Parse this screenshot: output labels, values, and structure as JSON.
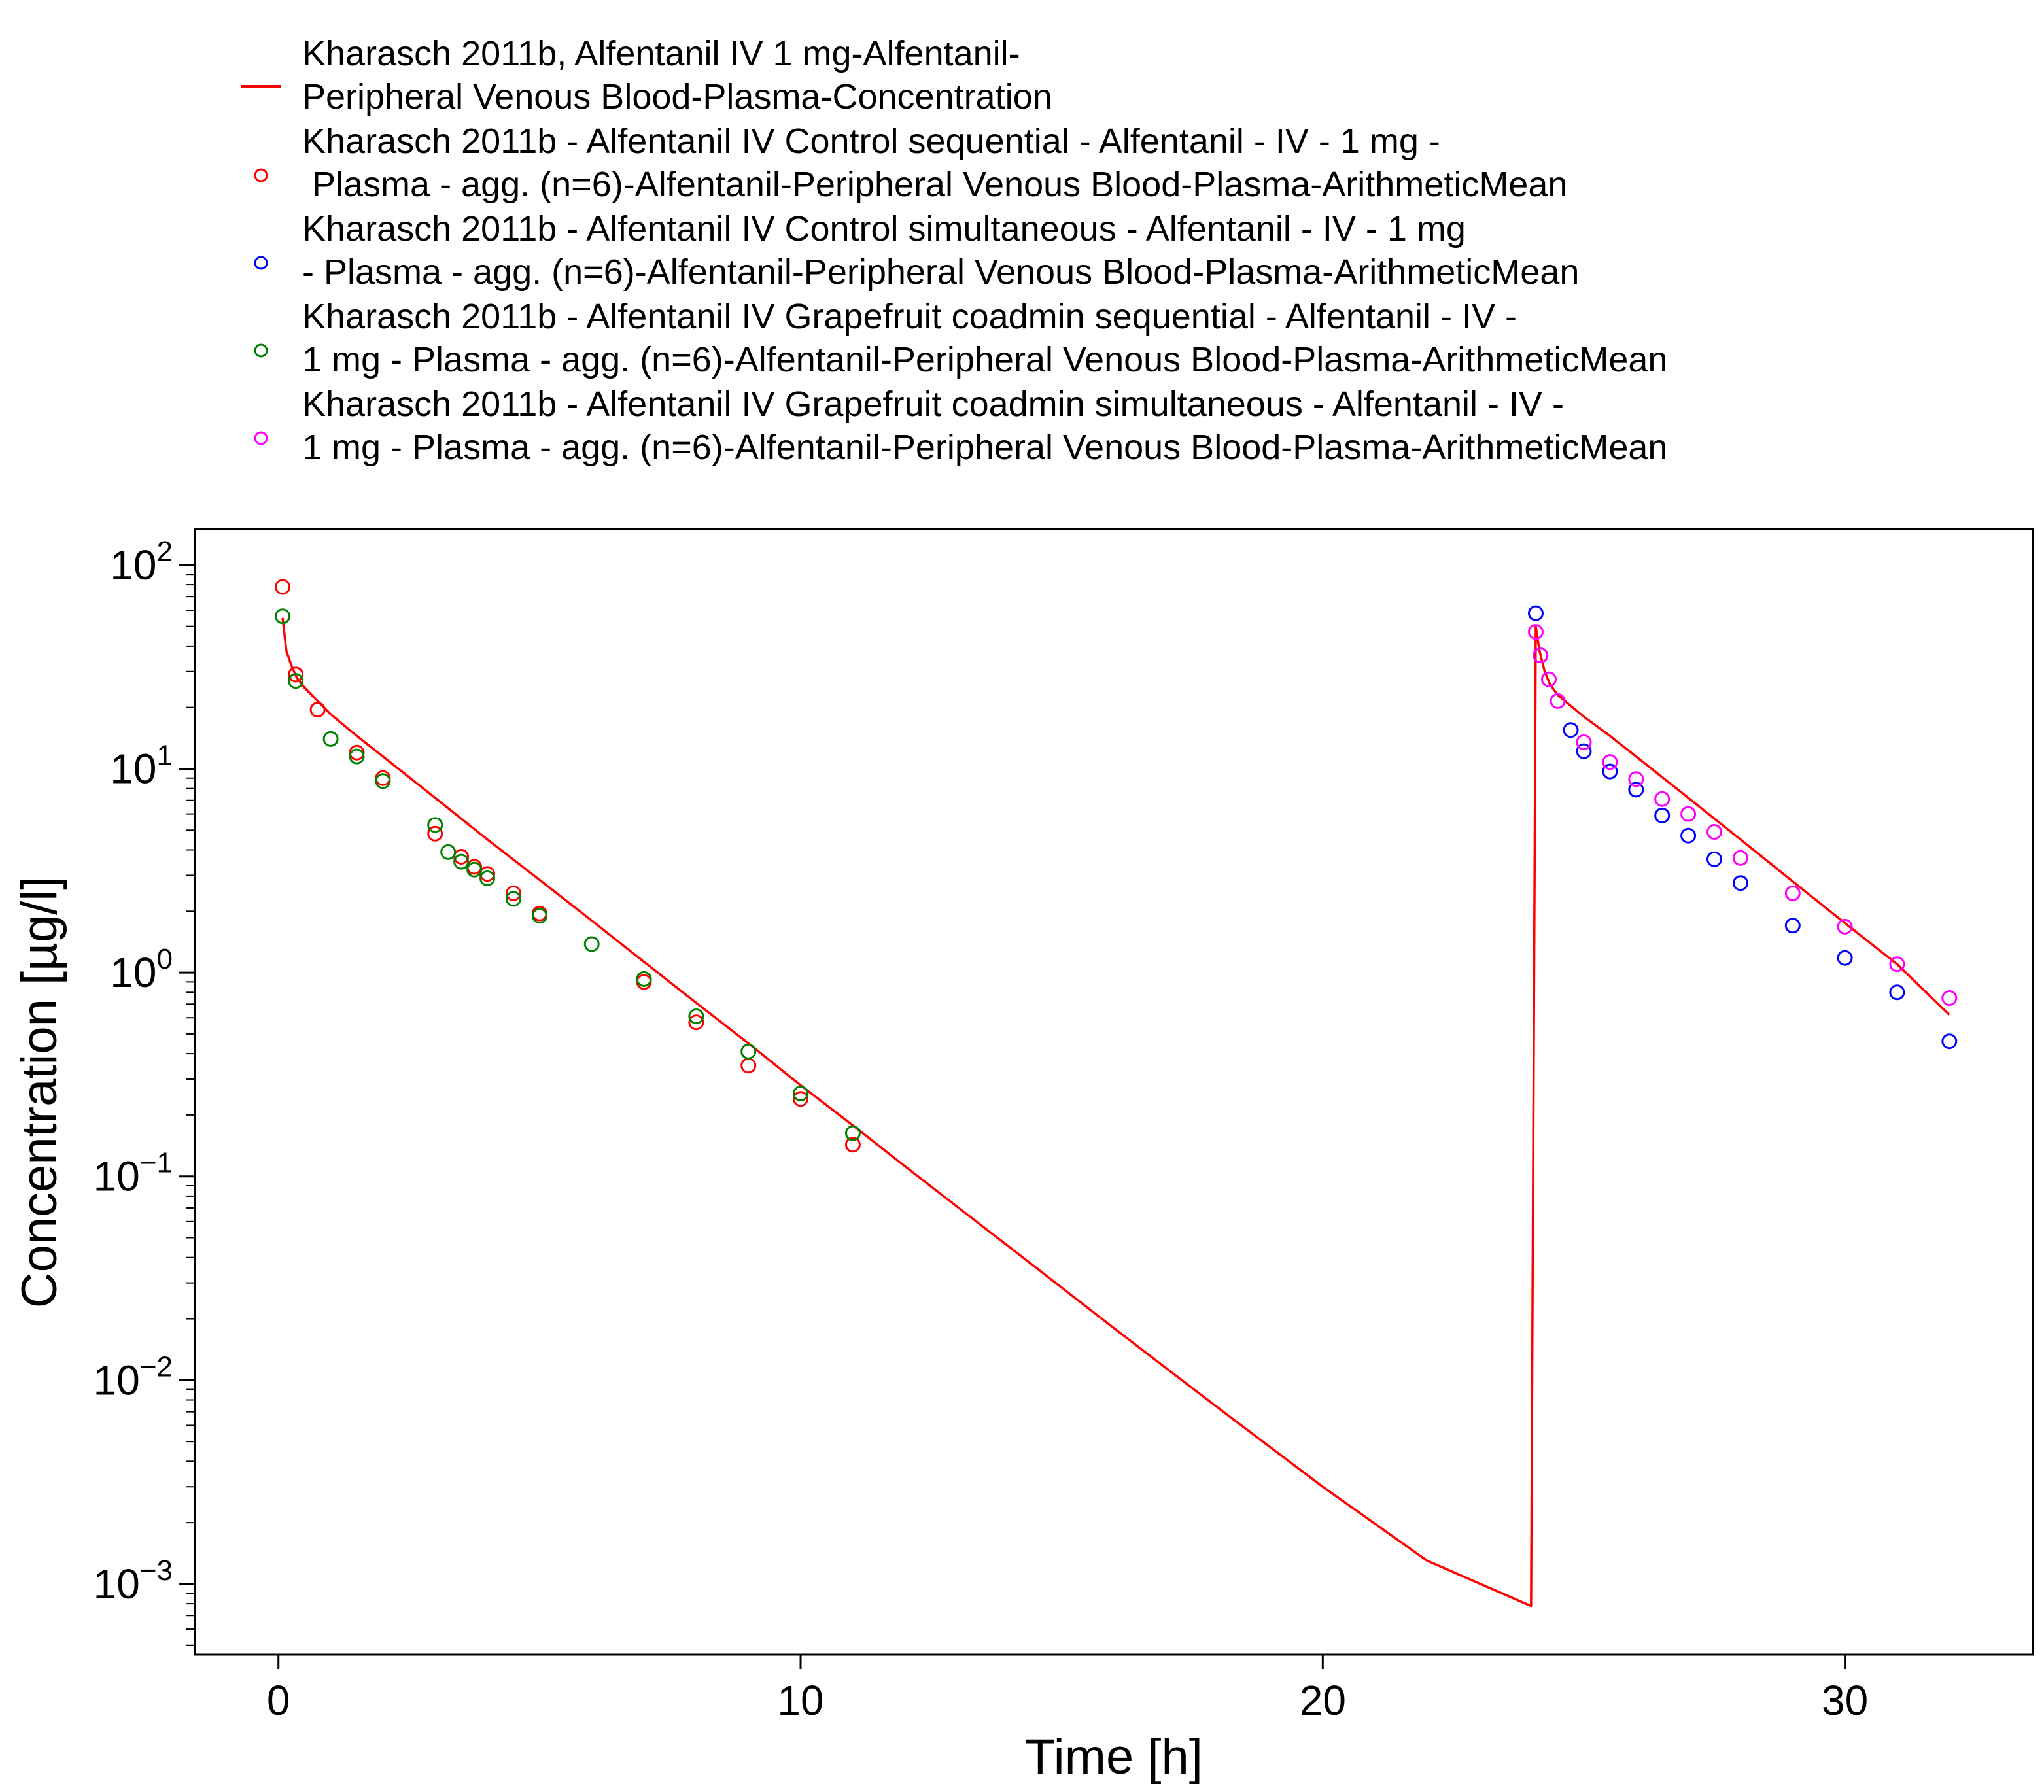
{
  "chart_data": {
    "type": "scatter",
    "title": "",
    "xlabel": "Time [h]",
    "ylabel": "Concentration [µg/l]",
    "xlim": [
      -1.6,
      33.6
    ],
    "ylim": [
      0.00045,
      150
    ],
    "y_scale": "log",
    "grid": false,
    "legend_position": "top",
    "x_ticks": [
      0,
      10,
      20,
      30
    ],
    "x_tick_labels": [
      "0",
      "10",
      "20",
      "30"
    ],
    "y_ticks": [
      {
        "value": 100,
        "base": "10",
        "exp": "2"
      },
      {
        "value": 10,
        "base": "10",
        "exp": "1"
      },
      {
        "value": 1,
        "base": "10",
        "exp": "0"
      },
      {
        "value": 0.1,
        "base": "10",
        "exp": "−1"
      },
      {
        "value": 0.01,
        "base": "10",
        "exp": "−2"
      },
      {
        "value": 0.001,
        "base": "10",
        "exp": "−3"
      }
    ],
    "series": [
      {
        "type": "line",
        "color": "#ff0000",
        "legend": [
          "Kharasch 2011b, Alfentanil IV 1 mg-Alfentanil-",
          "Peripheral Venous Blood-Plasma-Concentration"
        ],
        "x": [
          0.08,
          0.15,
          0.25,
          0.35,
          0.5,
          0.75,
          1,
          1.5,
          2,
          3,
          4,
          5,
          6,
          7,
          8,
          9,
          10,
          11,
          12,
          14,
          16,
          18,
          20,
          22,
          23.99,
          24.08,
          24.15,
          24.25,
          24.35,
          24.5,
          25,
          25.5,
          26,
          27,
          28,
          29,
          30,
          31,
          32
        ],
        "y": [
          55,
          38,
          32,
          28,
          25,
          21.5,
          18.5,
          14.5,
          11.5,
          7.2,
          4.5,
          2.85,
          1.8,
          1.13,
          0.71,
          0.45,
          0.28,
          0.178,
          0.112,
          0.045,
          0.018,
          0.0073,
          0.003,
          0.0013,
          0.00078,
          50,
          38,
          30,
          26,
          23,
          18,
          14.5,
          11.5,
          7.2,
          4.5,
          2.8,
          1.75,
          1.1,
          0.62
        ]
      },
      {
        "type": "scatter",
        "color": "#ff0000",
        "legend": [
          "Kharasch 2011b - Alfentanil IV Control sequential - Alfentanil - IV - 1 mg -",
          " Plasma - agg. (n=6)-Alfentanil-Peripheral Venous Blood-Plasma-ArithmeticMean"
        ],
        "x": [
          0.08,
          0.33,
          0.75,
          1.5,
          2,
          3,
          3.5,
          3.75,
          4,
          4.5,
          5,
          7,
          8,
          9,
          10,
          11
        ],
        "y": [
          78,
          29,
          19.5,
          12,
          9,
          4.8,
          3.7,
          3.3,
          3.05,
          2.45,
          1.95,
          0.9,
          0.57,
          0.35,
          0.24,
          0.143
        ]
      },
      {
        "type": "scatter",
        "color": "#0000ff",
        "legend": [
          "Kharasch 2011b - Alfentanil IV Control simultaneous - Alfentanil - IV - 1 mg",
          "- Plasma - agg. (n=6)-Alfentanil-Peripheral Venous Blood-Plasma-ArithmeticMean"
        ],
        "x": [
          24.08,
          24.17,
          24.75,
          25,
          25.5,
          26,
          26.5,
          27,
          27.5,
          28,
          29,
          30,
          31,
          32
        ],
        "y": [
          58,
          36,
          15.5,
          12.2,
          9.7,
          7.9,
          5.9,
          4.7,
          3.6,
          2.75,
          1.7,
          1.18,
          0.8,
          0.46
        ]
      },
      {
        "type": "scatter",
        "color": "#008000",
        "legend": [
          "Kharasch 2011b - Alfentanil IV Grapefruit coadmin sequential - Alfentanil - IV -",
          "1 mg - Plasma - agg. (n=6)-Alfentanil-Peripheral Venous Blood-Plasma-ArithmeticMean"
        ],
        "x": [
          0.08,
          0.33,
          1,
          1.5,
          2,
          3,
          3.25,
          3.5,
          3.75,
          4,
          4.5,
          5,
          6,
          7,
          8,
          9,
          10,
          11
        ],
        "y": [
          56,
          27,
          14,
          11.5,
          8.7,
          5.3,
          3.9,
          3.5,
          3.2,
          2.9,
          2.3,
          1.9,
          1.38,
          0.93,
          0.61,
          0.41,
          0.255,
          0.163
        ]
      },
      {
        "type": "scatter",
        "color": "#ff00ff",
        "legend": [
          "Kharasch 2011b - Alfentanil IV Grapefruit coadmin simultaneous - Alfentanil - IV -",
          "1 mg - Plasma - agg. (n=6)-Alfentanil-Peripheral Venous Blood-Plasma-ArithmeticMean"
        ],
        "x": [
          24.08,
          24.17,
          24.33,
          24.5,
          25,
          25.5,
          26,
          26.5,
          27,
          27.5,
          28,
          29,
          30,
          31,
          32
        ],
        "y": [
          47,
          36,
          27.5,
          21.5,
          13.5,
          10.8,
          8.9,
          7.1,
          6.0,
          4.9,
          3.65,
          2.45,
          1.68,
          1.1,
          0.75
        ]
      }
    ]
  }
}
